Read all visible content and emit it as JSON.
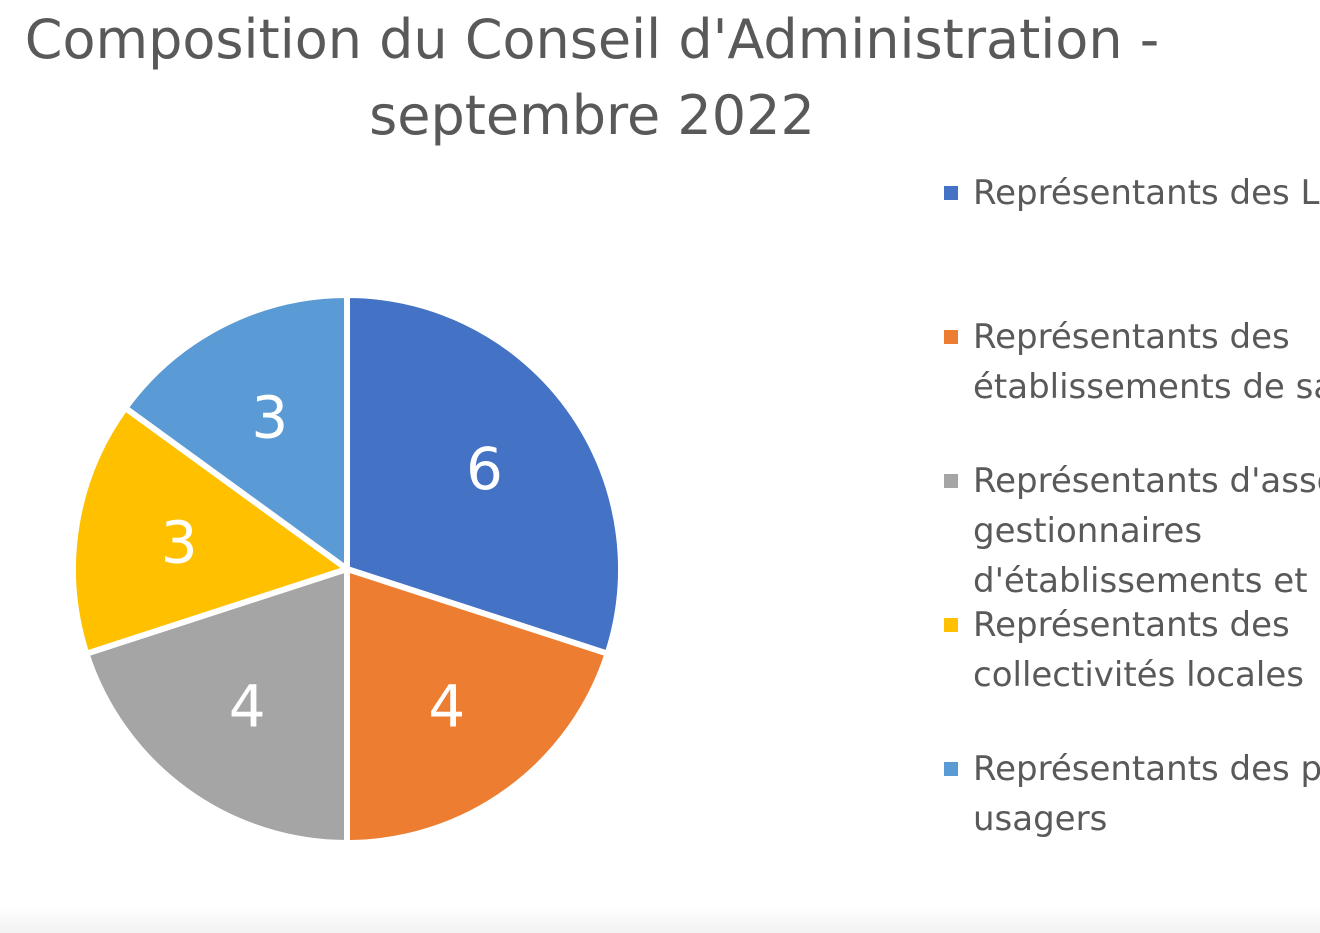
{
  "chart_data": {
    "type": "pie",
    "title": "Composition du Conseil d'Administration - septembre 2022",
    "title_lines": [
      "Composition du Conseil d'Administration -",
      "septembre 2022"
    ],
    "categories": [
      "Représentants des Li",
      "Représentants des établissements de sa",
      "Représentants d'asso gestionnaires d'établissements et s",
      "Représentants des collectivités locales",
      "Représentants des p usagers"
    ],
    "values": [
      6,
      4,
      4,
      3,
      3
    ],
    "colors": [
      "#4472C4",
      "#ED7D31",
      "#A5A5A5",
      "#FFC000",
      "#5B9BD5"
    ],
    "legend_position": "right",
    "legend": [
      {
        "lines": [
          "Représentants des Li"
        ],
        "color": "#4472C4"
      },
      {
        "lines": [
          "Représentants des",
          "établissements de sa"
        ],
        "color": "#ED7D31"
      },
      {
        "lines": [
          "Représentants d'asso",
          "gestionnaires",
          "d'établissements et s"
        ],
        "color": "#A5A5A5"
      },
      {
        "lines": [
          "Représentants des",
          "collectivités locales"
        ],
        "color": "#FFC000"
      },
      {
        "lines": [
          "Représentants des p",
          "usagers"
        ],
        "color": "#5B9BD5"
      }
    ],
    "data_labels": [
      "6",
      "4",
      "4",
      "3",
      "3"
    ]
  }
}
